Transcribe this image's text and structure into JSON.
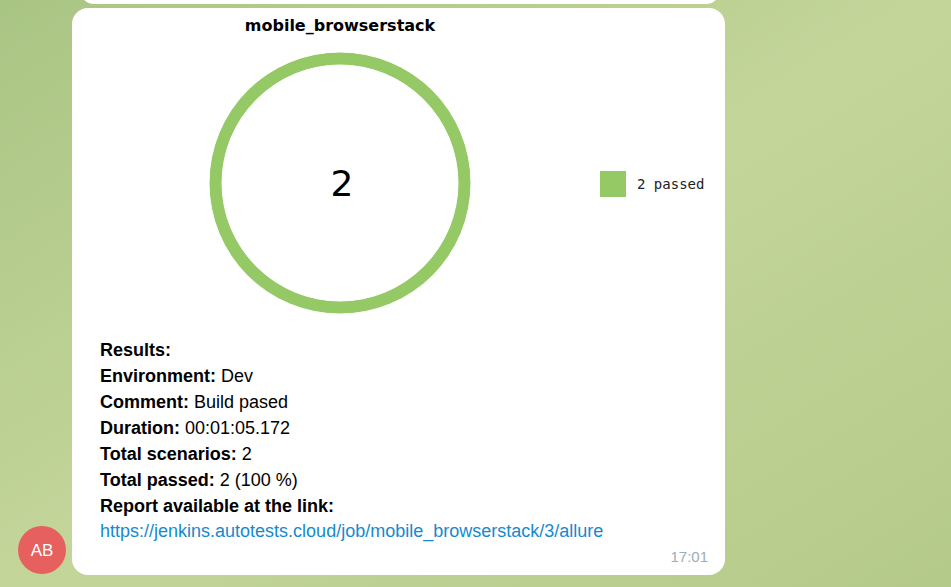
{
  "chart_data": {
    "type": "donut",
    "title": "mobile_browserstack",
    "categories": [
      "2 passed"
    ],
    "values": [
      2
    ],
    "colors": [
      "#94c966"
    ],
    "legend": "right",
    "total": 2
  },
  "message": {
    "heading": "Results:",
    "fields": [
      {
        "label": "Environment:",
        "value": "Dev"
      },
      {
        "label": "Comment:",
        "value": "Build pased"
      },
      {
        "label": "Duration:",
        "value": "00:01:05.172"
      },
      {
        "label": "Total scenarios:",
        "value": "2"
      },
      {
        "label": "Total passed:",
        "value": "2 (100 %)"
      }
    ],
    "link_label": "Report available at the link:",
    "link": "https://jenkins.autotests.cloud/job/mobile_browserstack/3/allure",
    "time": "17:01",
    "avatar": "AB"
  }
}
